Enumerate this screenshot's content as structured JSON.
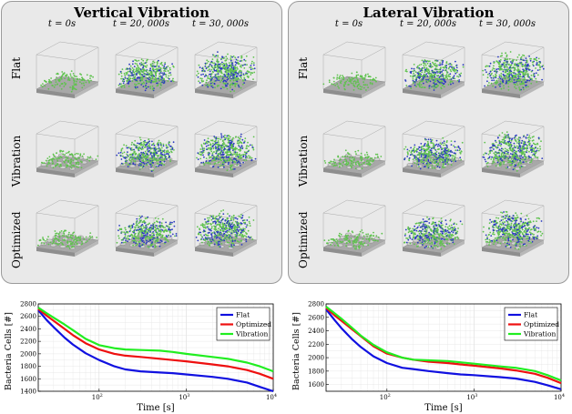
{
  "figure": {
    "panels": [
      {
        "id": "vertical",
        "title": "Vertical Vibration"
      },
      {
        "id": "lateral",
        "title": "Lateral Vibration"
      }
    ],
    "time_labels": [
      "t = 0s",
      "t = 20, 000s",
      "t = 30, 000s"
    ],
    "row_labels": [
      "Flat",
      "Vibration",
      "Optimized"
    ],
    "colors": {
      "flat": "#1010e0",
      "optimized": "#ee1010",
      "vibration": "#20ee20",
      "bacteria_green": "#5fc24e",
      "bacteria_blue": "#2b3bbf",
      "surface": "#a8a8a8"
    }
  },
  "chart_data": [
    {
      "type": "line",
      "ylabel": "Bacteria Cells [#]",
      "xlabel": "Time [s]",
      "xscale": "log",
      "xlim": [
        20,
        10000
      ],
      "ylim": [
        1400,
        2800
      ],
      "yticks": [
        1400,
        1600,
        1800,
        2000,
        2200,
        2400,
        2600,
        2800
      ],
      "xticks": [
        {
          "v": 100,
          "label": "10^2"
        },
        {
          "v": 1000,
          "label": "10^3"
        },
        {
          "v": 10000,
          "label": "10^4"
        }
      ],
      "legend": "top-right",
      "series": [
        {
          "name": "Flat",
          "color": "#1010e0",
          "x": [
            20,
            25,
            30,
            40,
            50,
            70,
            100,
            150,
            200,
            300,
            500,
            700,
            1000,
            2000,
            3000,
            5000,
            7000,
            10000
          ],
          "y": [
            2700,
            2540,
            2430,
            2260,
            2150,
            2010,
            1900,
            1800,
            1750,
            1720,
            1700,
            1690,
            1670,
            1630,
            1600,
            1540,
            1470,
            1400
          ]
        },
        {
          "name": "Optimized",
          "color": "#ee1010",
          "x": [
            20,
            25,
            30,
            40,
            50,
            70,
            100,
            150,
            200,
            300,
            500,
            700,
            1000,
            2000,
            3000,
            5000,
            7000,
            10000
          ],
          "y": [
            2720,
            2610,
            2530,
            2400,
            2300,
            2170,
            2070,
            2000,
            1970,
            1950,
            1920,
            1900,
            1880,
            1830,
            1800,
            1740,
            1680,
            1600
          ]
        },
        {
          "name": "Vibration",
          "color": "#20ee20",
          "x": [
            20,
            25,
            30,
            40,
            50,
            70,
            100,
            150,
            200,
            300,
            500,
            700,
            1000,
            2000,
            3000,
            5000,
            7000,
            10000
          ],
          "y": [
            2740,
            2650,
            2580,
            2470,
            2380,
            2240,
            2140,
            2090,
            2070,
            2060,
            2050,
            2030,
            2000,
            1950,
            1920,
            1860,
            1800,
            1720
          ]
        }
      ]
    },
    {
      "type": "line",
      "ylabel": "Bacteria Cells [#]",
      "xlabel": "Time [s]",
      "xscale": "log",
      "xlim": [
        20,
        10000
      ],
      "ylim": [
        1500,
        2800
      ],
      "yticks": [
        1600,
        1800,
        2000,
        2200,
        2400,
        2600,
        2800
      ],
      "xticks": [
        {
          "v": 100,
          "label": "10^2"
        },
        {
          "v": 1000,
          "label": "10^3"
        },
        {
          "v": 10000,
          "label": "10^4"
        }
      ],
      "legend": "top-right",
      "series": [
        {
          "name": "Flat",
          "color": "#1010e0",
          "x": [
            20,
            25,
            30,
            40,
            50,
            70,
            100,
            150,
            200,
            300,
            500,
            700,
            1000,
            2000,
            3000,
            5000,
            7000,
            10000
          ],
          "y": [
            2720,
            2560,
            2440,
            2270,
            2160,
            2020,
            1920,
            1850,
            1830,
            1800,
            1770,
            1750,
            1740,
            1710,
            1690,
            1640,
            1590,
            1530
          ]
        },
        {
          "name": "Optimized",
          "color": "#ee1010",
          "x": [
            20,
            25,
            30,
            40,
            50,
            70,
            100,
            150,
            200,
            300,
            500,
            700,
            1000,
            2000,
            3000,
            5000,
            7000,
            10000
          ],
          "y": [
            2740,
            2630,
            2550,
            2420,
            2320,
            2170,
            2060,
            2000,
            1970,
            1940,
            1920,
            1900,
            1880,
            1840,
            1810,
            1760,
            1700,
            1620
          ]
        },
        {
          "name": "Vibration",
          "color": "#20ee20",
          "x": [
            20,
            25,
            30,
            40,
            50,
            70,
            100,
            150,
            200,
            300,
            500,
            700,
            1000,
            2000,
            3000,
            5000,
            7000,
            10000
          ],
          "y": [
            2760,
            2660,
            2580,
            2440,
            2330,
            2190,
            2080,
            2000,
            1970,
            1960,
            1950,
            1930,
            1910,
            1870,
            1850,
            1800,
            1740,
            1660
          ]
        }
      ]
    }
  ]
}
